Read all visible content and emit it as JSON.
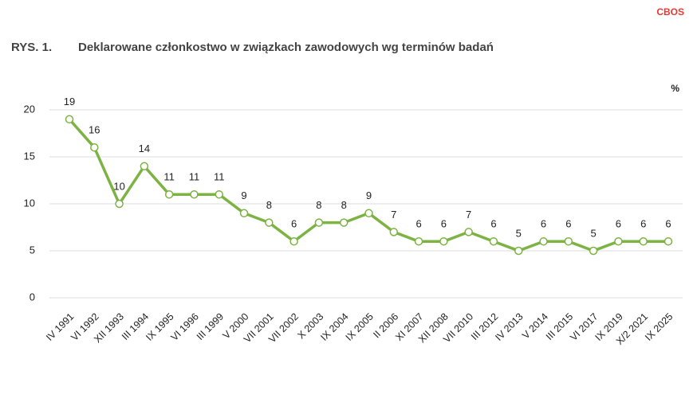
{
  "source": "CBOS",
  "chart_data": {
    "type": "line",
    "figure_label": "RYS. 1.",
    "title": "Deklarowane członkostwo w związkach zawodowych wg terminów badań",
    "unit": "%",
    "categories": [
      "IV 1991",
      "VI 1992",
      "XII 1993",
      "III 1994",
      "IX 1995",
      "VI 1996",
      "III 1999",
      "V 2000",
      "VII 2001",
      "VII 2002",
      "X 2003",
      "IX 2004",
      "IX 2005",
      "II 2006",
      "XI 2007",
      "XII 2008",
      "VII 2010",
      "III 2012",
      "IV 2013",
      "V 2014",
      "III 2015",
      "VI 2017",
      "IX 2019",
      "X/2 2021",
      "IX 2025"
    ],
    "values": [
      19,
      16,
      10,
      14,
      11,
      11,
      11,
      9,
      8,
      6,
      8,
      8,
      9,
      7,
      6,
      6,
      7,
      6,
      5,
      6,
      6,
      5,
      6,
      6,
      6
    ],
    "color": "#7cb342",
    "ylim": [
      0,
      20
    ],
    "yticks": [
      0,
      5,
      10,
      15,
      20
    ],
    "grid": true
  }
}
